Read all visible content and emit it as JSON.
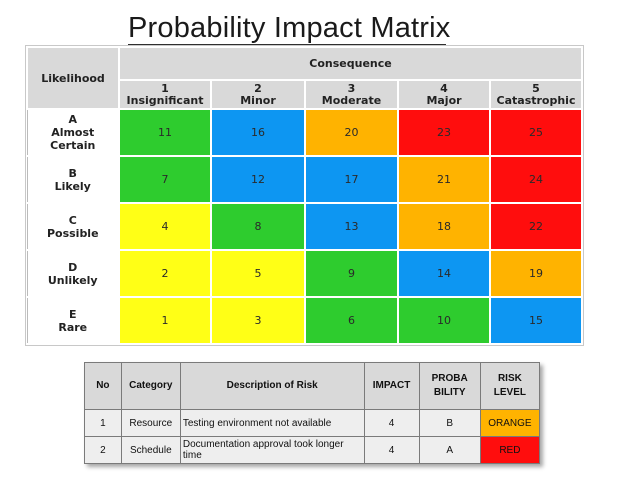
{
  "title": "Probability Impact Matrix",
  "matrix": {
    "corner_label": "Likelihood",
    "consequence_label": "Consequence",
    "columns": [
      {
        "num": "1",
        "label": "Insignificant"
      },
      {
        "num": "2",
        "label": "Minor"
      },
      {
        "num": "3",
        "label": "Moderate"
      },
      {
        "num": "4",
        "label": "Major"
      },
      {
        "num": "5",
        "label": "Catastrophic"
      }
    ],
    "rows": [
      {
        "letter": "A",
        "label": "Almost",
        "label2": "Certain",
        "cells": [
          "11",
          "16",
          "20",
          "23",
          "25"
        ],
        "colors": [
          "green",
          "blue",
          "orange",
          "red",
          "red"
        ]
      },
      {
        "letter": "B",
        "label": "Likely",
        "label2": "",
        "cells": [
          "7",
          "12",
          "17",
          "21",
          "24"
        ],
        "colors": [
          "green",
          "blue",
          "blue",
          "orange",
          "red"
        ]
      },
      {
        "letter": "C",
        "label": "Possible",
        "label2": "",
        "cells": [
          "4",
          "8",
          "13",
          "18",
          "22"
        ],
        "colors": [
          "yellow",
          "green",
          "blue",
          "orange",
          "red"
        ]
      },
      {
        "letter": "D",
        "label": "Unlikely",
        "label2": "",
        "cells": [
          "2",
          "5",
          "9",
          "14",
          "19"
        ],
        "colors": [
          "yellow",
          "yellow",
          "green",
          "blue",
          "orange"
        ]
      },
      {
        "letter": "E",
        "label": "Rare",
        "label2": "",
        "cells": [
          "1",
          "3",
          "6",
          "10",
          "15"
        ],
        "colors": [
          "yellow",
          "yellow",
          "green",
          "green",
          "blue"
        ]
      }
    ],
    "palette": {
      "green": "#2ecc2e",
      "blue": "#0d96f2",
      "orange": "#ffb300",
      "red": "#ff0d0d",
      "yellow": "#ffff16"
    }
  },
  "risk_table": {
    "headers": {
      "no": "No",
      "category": "Category",
      "description": "Description of Risk",
      "impact": "IMPACT",
      "probability_1": "PROBA",
      "probability_2": "BILITY",
      "risk_level_1": "RISK",
      "risk_level_2": "LEVEL"
    },
    "rows": [
      {
        "no": "1",
        "category": "Resource",
        "description": "Testing environment not available",
        "description_2": "",
        "impact": "4",
        "probability": "B",
        "risk_level": "ORANGE",
        "level_color": "#ffb300"
      },
      {
        "no": "2",
        "category": "Schedule",
        "description": "Documentation approval took longer",
        "description_2": "time",
        "impact": "4",
        "probability": "A",
        "risk_level": "RED",
        "level_color": "#ff0d0d"
      }
    ]
  }
}
